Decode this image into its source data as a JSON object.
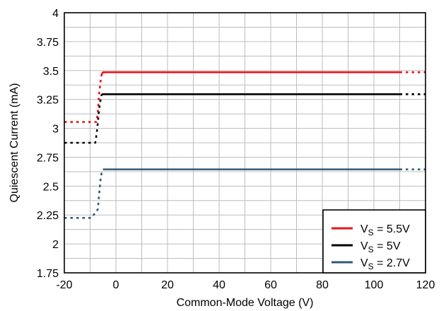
{
  "chart_data": {
    "type": "line",
    "title": "",
    "xlabel": "Common-Mode Voltage (V)",
    "ylabel": "Quiescent Current (mA)",
    "xlim": [
      -20,
      120
    ],
    "ylim": [
      1.75,
      4
    ],
    "x_ticks": [
      -20,
      0,
      20,
      40,
      60,
      80,
      100,
      120
    ],
    "y_ticks": [
      1.75,
      2,
      2.25,
      2.5,
      2.75,
      3,
      3.25,
      3.5,
      3.75,
      4
    ],
    "x_tick_labels": [
      "-20",
      "0",
      "20",
      "40",
      "60",
      "80",
      "100",
      "120"
    ],
    "y_tick_labels": [
      "1.75",
      "2",
      "2.25",
      "2.5",
      "2.75",
      "3",
      "3.25",
      "3.5",
      "3.75",
      "4"
    ],
    "grid": true,
    "legend_position": "bottom-right",
    "series": [
      {
        "legend_main": "V",
        "legend_sub": "S",
        "legend_rest": " = 5.5V",
        "color": "#e8141b",
        "solid": [
          [
            -5.5,
            3.47
          ],
          [
            -5,
            3.485
          ],
          [
            110,
            3.485
          ]
        ],
        "dotted_segments": [
          [
            [
              -20,
              3.055
            ],
            [
              -7.5,
              3.055
            ],
            [
              -7,
              3.15
            ],
            [
              -6.5,
              3.3
            ],
            [
              -6,
              3.4
            ],
            [
              -5.5,
              3.47
            ]
          ],
          [
            [
              110,
              3.485
            ],
            [
              120,
              3.485
            ]
          ]
        ]
      },
      {
        "legend_main": "V",
        "legend_sub": "S",
        "legend_rest": " = 5V",
        "color": "#000000",
        "solid": [
          [
            -5.5,
            3.295
          ],
          [
            110,
            3.295
          ]
        ],
        "dotted_segments": [
          [
            [
              -20,
              2.875
            ],
            [
              -8,
              2.875
            ],
            [
              -7.5,
              2.95
            ],
            [
              -7,
              3.05
            ],
            [
              -6.5,
              3.17
            ],
            [
              -6,
              3.24
            ],
            [
              -5.5,
              3.295
            ]
          ],
          [
            [
              110,
              3.295
            ],
            [
              120,
              3.295
            ]
          ]
        ]
      },
      {
        "legend_main": "V",
        "legend_sub": "S",
        "legend_rest": " = 2.7V",
        "color": "#2f5b73",
        "solid": [
          [
            -5,
            2.645
          ],
          [
            110,
            2.645
          ]
        ],
        "dotted_segments": [
          [
            [
              -20,
              2.225
            ],
            [
              -9.5,
              2.225
            ],
            [
              -7,
              2.3
            ],
            [
              -6.5,
              2.43
            ],
            [
              -6,
              2.55
            ],
            [
              -5.5,
              2.62
            ],
            [
              -5,
              2.645
            ]
          ],
          [
            [
              110,
              2.645
            ],
            [
              120,
              2.645
            ]
          ]
        ]
      }
    ]
  }
}
